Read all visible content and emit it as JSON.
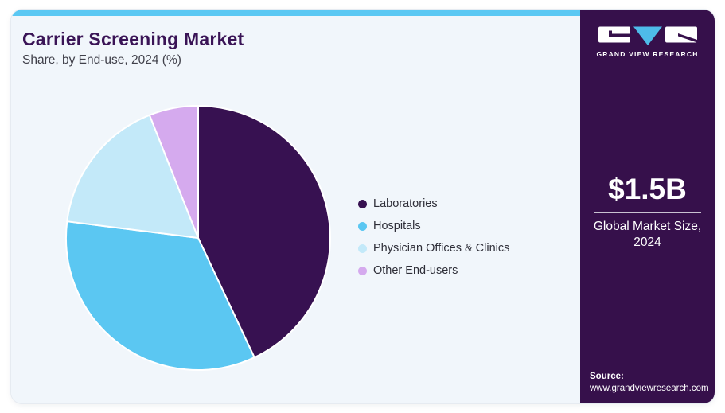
{
  "header": {
    "title": "Carrier Screening Market",
    "subtitle": "Share, by End-use, 2024 (%)"
  },
  "sidebar": {
    "logo_text": "GRAND VIEW RESEARCH",
    "metric_value": "$1.5B",
    "metric_label_line1": "Global Market Size,",
    "metric_label_line2": "2024",
    "source_label": "Source:",
    "source_url": "www.grandviewresearch.com"
  },
  "theme": {
    "accent_cyan": "#5bc8f3",
    "brand_purple": "#36104b",
    "panel_bg": "#f1f6fb",
    "title_color": "#3a1456",
    "divider_color": "#c9c2d2"
  },
  "chart_data": {
    "type": "pie",
    "title": "Carrier Screening Market",
    "subtitle": "Share, by End-use, 2024 (%)",
    "categories": [
      "Laboratories",
      "Hospitals",
      "Physician Offices & Clinics",
      "Other End-users"
    ],
    "values": [
      43,
      34,
      17,
      6
    ],
    "unit": "%",
    "colors": [
      "#371151",
      "#5bc7f2",
      "#c3e9f9",
      "#d5aaee"
    ],
    "start_angle_deg": 0,
    "direction": "clockwise",
    "legend_position": "right",
    "data_labels": false
  }
}
